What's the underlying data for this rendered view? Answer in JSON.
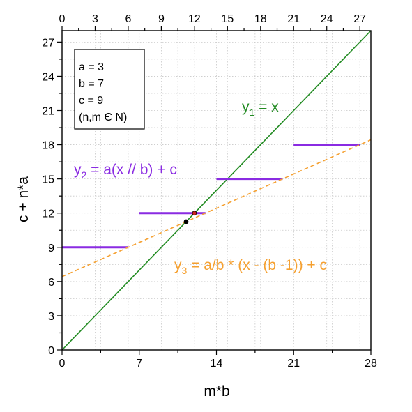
{
  "chart_data": {
    "type": "line",
    "xlabel": "m*b",
    "ylabel": "c + n*a",
    "xlim": [
      0,
      28
    ],
    "ylim": [
      0,
      28
    ],
    "x_ticks": [
      0,
      7,
      14,
      21,
      28
    ],
    "x_ticks_top": [
      0,
      3,
      6,
      9,
      12,
      15,
      18,
      21,
      24,
      27
    ],
    "y_ticks": [
      0,
      3,
      6,
      9,
      12,
      15,
      18,
      21,
      24,
      27
    ],
    "grid": true,
    "legend": {
      "placement": "top-left",
      "lines": [
        "a = 3",
        "b = 7",
        "c = 9",
        "(n,m Є N)"
      ]
    },
    "series": [
      {
        "name": "y1 = x",
        "label_parts": [
          "y",
          "1",
          " = x"
        ],
        "color": "#228b22",
        "style": "solid",
        "points": [
          [
            0,
            0
          ],
          [
            28,
            28
          ]
        ]
      },
      {
        "name": "y2 = a(x // b) + c",
        "label_parts": [
          "y",
          "2",
          " = a(x // b) + c"
        ],
        "color": "#8a2be2",
        "style": "solid",
        "segments": [
          [
            0,
            6,
            9
          ],
          [
            7,
            13,
            12
          ],
          [
            14,
            20,
            15
          ],
          [
            21,
            27,
            18
          ]
        ]
      },
      {
        "name": "y3 = a/b * (x - (b -1)) + c",
        "label_parts": [
          "y",
          "3",
          " = a/b * (x - (b -1)) + c"
        ],
        "color": "#f5a030",
        "style": "dashed",
        "points": [
          [
            0,
            6.43
          ],
          [
            28,
            18.43
          ]
        ]
      }
    ],
    "markers": [
      {
        "x": 11.25,
        "y": 11.25,
        "color": "#000000"
      },
      {
        "x": 12,
        "y": 12,
        "color": "#cc2222"
      }
    ]
  }
}
